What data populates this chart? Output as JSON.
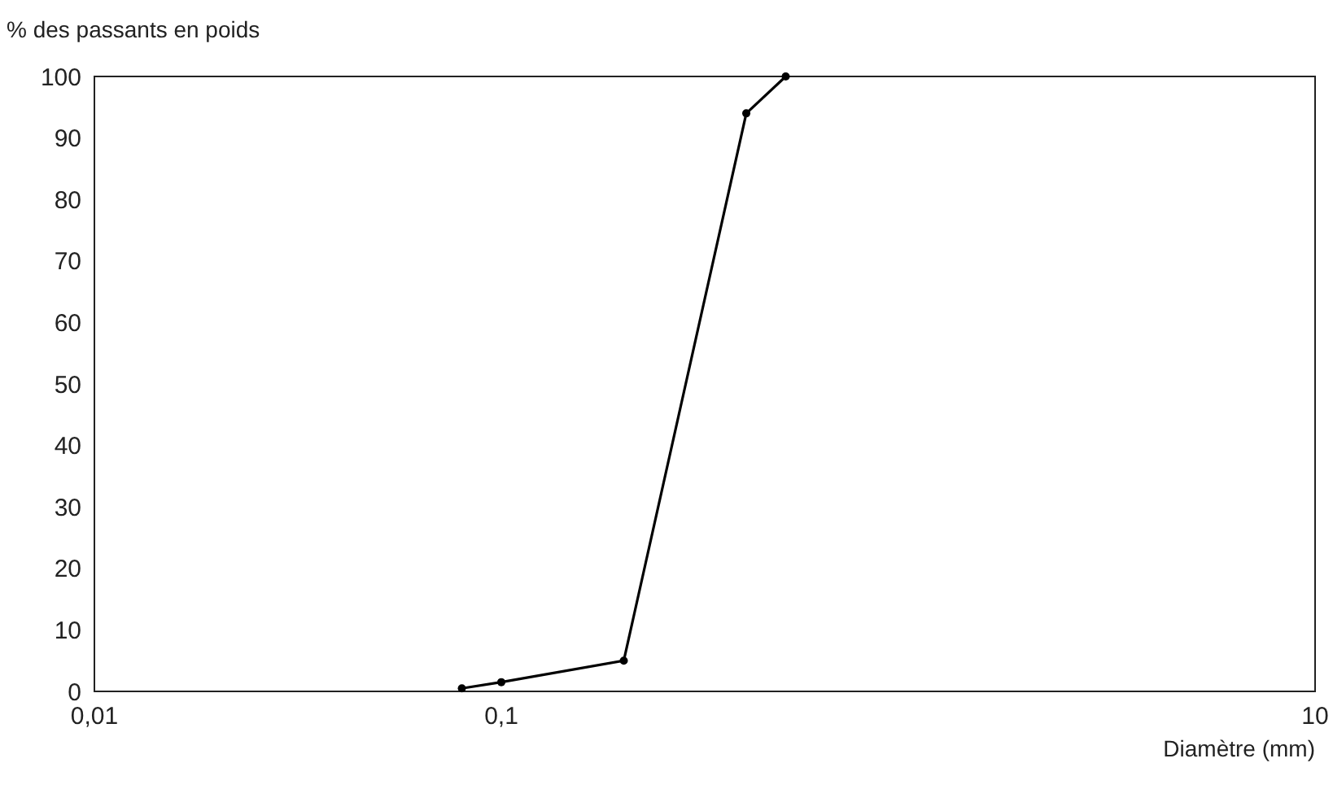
{
  "chart_data": {
    "type": "line",
    "ylabel": "% des passants en poids",
    "xlabel": "Diamètre (mm)",
    "x": [
      0.08,
      0.1,
      0.2,
      0.4,
      0.5
    ],
    "series": [
      {
        "color": "#000000",
        "values": [
          0.5,
          1.5,
          5,
          94,
          100
        ]
      }
    ],
    "log": "x",
    "xlim": [
      0.01,
      10
    ],
    "xticks": [
      {
        "value": 0.01,
        "label": "0,01"
      },
      {
        "value": 0.1,
        "label": "0,1"
      },
      {
        "value": 10,
        "label": "10"
      }
    ],
    "ylim": [
      0,
      100
    ],
    "yticks": [
      0,
      10,
      20,
      30,
      40,
      50,
      60,
      70,
      80,
      90,
      100
    ],
    "marker": "circle",
    "line_style": "solid",
    "grid": false
  }
}
